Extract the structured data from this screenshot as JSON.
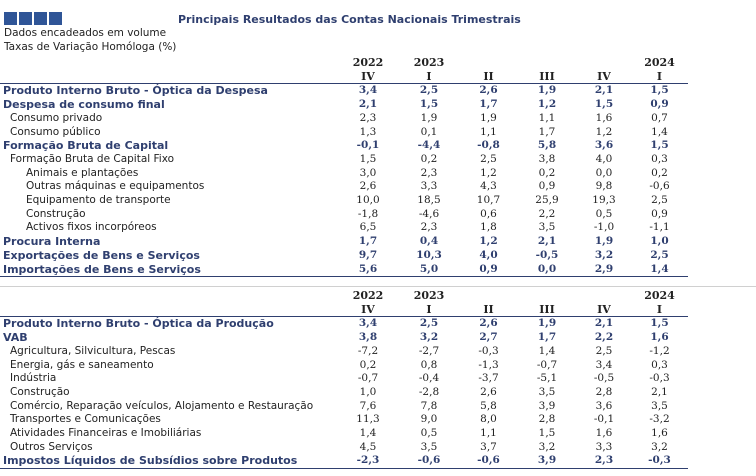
{
  "header": {
    "title": "Principais Resultados das Contas Nacionais Trimestrais",
    "subtitle1": "Dados encadeados em volume",
    "subtitle2": "Taxas de Variação Homóloga (%)",
    "logo_color": "#2f5597"
  },
  "colors": {
    "accent": "#2f3f6f"
  },
  "table1": {
    "years": [
      "2022",
      "2023",
      "",
      "",
      "",
      "2024"
    ],
    "quarters": [
      "IV",
      "I",
      "II",
      "III",
      "IV",
      "I"
    ],
    "rows": [
      {
        "label": "Produto Interno Bruto - Óptica da Despesa",
        "level": 0,
        "bold": true,
        "values": [
          "3,4",
          "2,5",
          "2,6",
          "1,9",
          "2,1",
          "1,5"
        ]
      },
      {
        "label": "Despesa de consumo final",
        "level": 0,
        "bold": true,
        "values": [
          "2,1",
          "1,5",
          "1,7",
          "1,2",
          "1,5",
          "0,9"
        ]
      },
      {
        "label": "Consumo privado",
        "level": 1,
        "bold": false,
        "values": [
          "2,3",
          "1,9",
          "1,9",
          "1,1",
          "1,6",
          "0,7"
        ]
      },
      {
        "label": "Consumo público",
        "level": 1,
        "bold": false,
        "values": [
          "1,3",
          "0,1",
          "1,1",
          "1,7",
          "1,2",
          "1,4"
        ]
      },
      {
        "label": "Formação Bruta de Capital",
        "level": 0,
        "bold": true,
        "values": [
          "-0,1",
          "-4,4",
          "-0,8",
          "5,8",
          "3,6",
          "1,5"
        ]
      },
      {
        "label": "Formação Bruta de Capital Fixo",
        "level": 1,
        "bold": false,
        "values": [
          "1,5",
          "0,2",
          "2,5",
          "3,8",
          "4,0",
          "0,3"
        ]
      },
      {
        "label": "Animais e plantações",
        "level": 2,
        "bold": false,
        "values": [
          "3,0",
          "2,3",
          "1,2",
          "0,2",
          "0,0",
          "0,2"
        ]
      },
      {
        "label": "Outras máquinas e equipamentos",
        "level": 2,
        "bold": false,
        "values": [
          "2,6",
          "3,3",
          "4,3",
          "0,9",
          "9,8",
          "-0,6"
        ]
      },
      {
        "label": "Equipamento de transporte",
        "level": 2,
        "bold": false,
        "values": [
          "10,0",
          "18,5",
          "10,7",
          "25,9",
          "19,3",
          "2,5"
        ]
      },
      {
        "label": "Construção",
        "level": 2,
        "bold": false,
        "values": [
          "-1,8",
          "-4,6",
          "0,6",
          "2,2",
          "0,5",
          "0,9"
        ]
      },
      {
        "label": "Activos fixos incorpóreos",
        "level": 2,
        "bold": false,
        "values": [
          "6,5",
          "2,3",
          "1,8",
          "3,5",
          "-1,0",
          "-1,1"
        ]
      },
      {
        "label": "Procura Interna",
        "level": 0,
        "bold": true,
        "values": [
          "1,7",
          "0,4",
          "1,2",
          "2,1",
          "1,9",
          "1,0"
        ]
      },
      {
        "label": "Exportações de Bens e Serviços",
        "level": 0,
        "bold": true,
        "values": [
          "9,7",
          "10,3",
          "4,0",
          "-0,5",
          "3,2",
          "2,5"
        ]
      },
      {
        "label": "Importações de Bens e Serviços",
        "level": 0,
        "bold": true,
        "values": [
          "5,6",
          "5,0",
          "0,9",
          "0,0",
          "2,9",
          "1,4"
        ]
      }
    ]
  },
  "table2": {
    "years": [
      "2022",
      "2023",
      "",
      "",
      "",
      "2024"
    ],
    "quarters": [
      "IV",
      "I",
      "II",
      "III",
      "IV",
      "I"
    ],
    "rows": [
      {
        "label": "Produto Interno Bruto - Óptica da Produção",
        "level": 0,
        "bold": true,
        "values": [
          "3,4",
          "2,5",
          "2,6",
          "1,9",
          "2,1",
          "1,5"
        ]
      },
      {
        "label": "VAB",
        "level": 0,
        "bold": true,
        "values": [
          "3,8",
          "3,2",
          "2,7",
          "1,7",
          "2,2",
          "1,6"
        ]
      },
      {
        "label": "Agricultura, Silvicultura, Pescas",
        "level": 1,
        "bold": false,
        "values": [
          "-7,2",
          "-2,7",
          "-0,3",
          "1,4",
          "2,5",
          "-1,2"
        ]
      },
      {
        "label": "Energia, gás e saneamento",
        "level": 1,
        "bold": false,
        "values": [
          "0,2",
          "0,8",
          "-1,3",
          "-0,7",
          "3,4",
          "0,3"
        ]
      },
      {
        "label": "Indústria",
        "level": 1,
        "bold": false,
        "values": [
          "-0,7",
          "-0,4",
          "-3,7",
          "-5,1",
          "-0,5",
          "-0,3"
        ]
      },
      {
        "label": "Construção",
        "level": 1,
        "bold": false,
        "values": [
          "1,0",
          "-2,8",
          "2,6",
          "3,5",
          "2,8",
          "2,1"
        ]
      },
      {
        "label": "Comércio, Reparação veículos, Alojamento e Restauração",
        "level": 1,
        "bold": false,
        "values": [
          "7,6",
          "7,8",
          "5,8",
          "3,9",
          "3,6",
          "3,5"
        ]
      },
      {
        "label": "Transportes e Comunicações",
        "level": 1,
        "bold": false,
        "values": [
          "11,3",
          "9,0",
          "8,0",
          "2,8",
          "-0,1",
          "-3,2"
        ]
      },
      {
        "label": "Atividades Financeiras e Imobiliárias",
        "level": 1,
        "bold": false,
        "values": [
          "1,4",
          "0,5",
          "1,1",
          "1,5",
          "1,6",
          "1,6"
        ]
      },
      {
        "label": "Outros Serviços",
        "level": 1,
        "bold": false,
        "values": [
          "4,5",
          "3,5",
          "3,7",
          "3,2",
          "3,3",
          "3,2"
        ]
      },
      {
        "label": "Impostos Líquidos de Subsídios sobre Produtos",
        "level": 0,
        "bold": true,
        "values": [
          "-2,3",
          "-0,6",
          "-0,6",
          "3,9",
          "2,3",
          "-0,3"
        ]
      }
    ]
  }
}
